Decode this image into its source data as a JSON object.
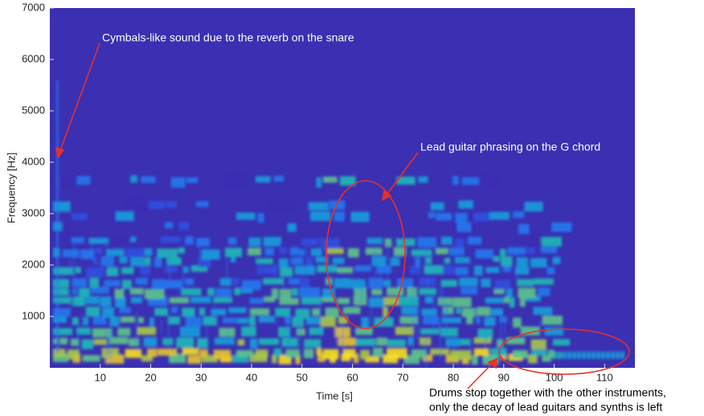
{
  "chart_data": {
    "type": "spectrogram",
    "xlabel": "Time [s]",
    "ylabel": "Frequency [Hz]",
    "xlim": [
      0,
      116
    ],
    "ylim": [
      0,
      7000
    ],
    "xticks": [
      10,
      20,
      30,
      40,
      50,
      60,
      70,
      80,
      90,
      100,
      110
    ],
    "yticks": [
      1000,
      2000,
      3000,
      4000,
      5000,
      6000,
      7000
    ],
    "annotations": [
      {
        "text": "Cymbals-like sound due to the reverb on the snare"
      },
      {
        "text": "Lead guitar phrasing on the G chord"
      },
      {
        "lines": [
          "Drums stop together with the other instruments,",
          "only the decay of lead guitars and synths is left"
        ]
      }
    ]
  }
}
